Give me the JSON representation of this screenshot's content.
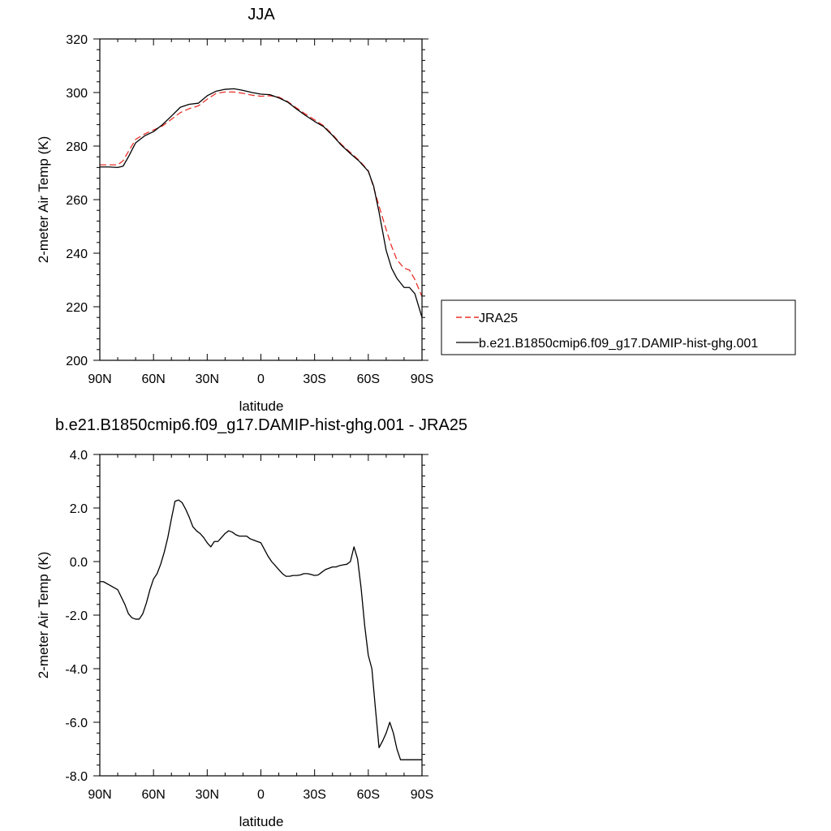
{
  "chart_data": [
    {
      "type": "line",
      "title": "JJA",
      "xlabel": "latitude",
      "ylabel": "2-meter Air Temp (K)",
      "xlim": [
        90,
        -90
      ],
      "ylim": [
        200,
        320
      ],
      "xticks": [
        {
          "value": 90,
          "label": "90N"
        },
        {
          "value": 60,
          "label": "60N"
        },
        {
          "value": 30,
          "label": "30N"
        },
        {
          "value": 0,
          "label": "0"
        },
        {
          "value": -30,
          "label": "30S"
        },
        {
          "value": -60,
          "label": "60S"
        },
        {
          "value": -90,
          "label": "90S"
        }
      ],
      "yticks": [
        {
          "value": 200,
          "label": "200"
        },
        {
          "value": 220,
          "label": "220"
        },
        {
          "value": 240,
          "label": "240"
        },
        {
          "value": 260,
          "label": "260"
        },
        {
          "value": 280,
          "label": "280"
        },
        {
          "value": 300,
          "label": "300"
        },
        {
          "value": 320,
          "label": "320"
        }
      ],
      "grid": false,
      "legend_position": "right",
      "series": [
        {
          "name": "JRA25",
          "color": "#e8302a",
          "dash": "dashed",
          "x": [
            90,
            85,
            80,
            77,
            74,
            70,
            65,
            60,
            55,
            50,
            45,
            40,
            35,
            30,
            25,
            20,
            15,
            10,
            5,
            0,
            -5,
            -10,
            -15,
            -20,
            -25,
            -30,
            -35,
            -40,
            -45,
            -50,
            -55,
            -60,
            -63,
            -66,
            -70,
            -73,
            -76,
            -80,
            -83,
            -86,
            -90
          ],
          "y": [
            273,
            273,
            273,
            274.5,
            278,
            282.5,
            284.5,
            286,
            287.5,
            290,
            292.5,
            294,
            295,
            297.5,
            299.7,
            300.2,
            300.2,
            299.7,
            299,
            298.6,
            298.8,
            298.3,
            296.6,
            294.2,
            291.9,
            289.8,
            287.6,
            284.3,
            280.6,
            277.6,
            274.6,
            270.8,
            264.5,
            257.6,
            248.8,
            242.6,
            237.5,
            234.4,
            233.7,
            230.2,
            223.8
          ]
        },
        {
          "name": "b.e21.B1850cmip6.f09_g17.DAMIP-hist-ghg.001",
          "color": "#000000",
          "dash": "solid",
          "x": [
            90,
            85,
            80,
            77,
            74,
            70,
            65,
            60,
            55,
            50,
            45,
            40,
            35,
            30,
            25,
            20,
            15,
            10,
            5,
            0,
            -5,
            -10,
            -15,
            -20,
            -25,
            -30,
            -35,
            -40,
            -45,
            -50,
            -55,
            -60,
            -63,
            -66,
            -70,
            -73,
            -76,
            -80,
            -83,
            -86,
            -90
          ],
          "y": [
            272.2,
            272.2,
            272,
            272.5,
            276,
            281.2,
            283.8,
            285.4,
            288,
            291.2,
            294.5,
            295.6,
            296,
            298.8,
            300.5,
            301.2,
            301.4,
            300.8,
            300,
            299.4,
            299.2,
            298,
            296.4,
            293.8,
            291.4,
            289.2,
            287.3,
            284,
            280.3,
            277.2,
            274.3,
            270.6,
            265,
            255.3,
            241,
            234.4,
            230.6,
            227.2,
            227.2,
            224.9,
            216
          ]
        }
      ]
    },
    {
      "type": "line",
      "title": "b.e21.B1850cmip6.f09_g17.DAMIP-hist-ghg.001 - JRA25",
      "xlabel": "latitude",
      "ylabel": "2-meter Air Temp (K)",
      "xlim": [
        90,
        -90
      ],
      "ylim": [
        -8,
        4
      ],
      "xticks": [
        {
          "value": 90,
          "label": "90N"
        },
        {
          "value": 60,
          "label": "60N"
        },
        {
          "value": 30,
          "label": "30N"
        },
        {
          "value": 0,
          "label": "0"
        },
        {
          "value": -30,
          "label": "30S"
        },
        {
          "value": -60,
          "label": "60S"
        },
        {
          "value": -90,
          "label": "90S"
        }
      ],
      "yticks": [
        {
          "value": 4,
          "label": "4.0"
        },
        {
          "value": 2,
          "label": "2.0"
        },
        {
          "value": 0,
          "label": "0.0"
        },
        {
          "value": -2,
          "label": "-2.0"
        },
        {
          "value": -4,
          "label": "-4.0"
        },
        {
          "value": -6,
          "label": "-6.0"
        },
        {
          "value": -8,
          "label": "-8.0"
        }
      ],
      "grid": false,
      "series": [
        {
          "color": "#000000",
          "dash": "solid",
          "x": [
            90,
            88,
            84,
            80,
            76,
            74,
            72,
            70,
            68,
            66,
            64,
            62,
            60,
            58,
            56,
            54,
            52,
            50,
            48,
            46,
            44,
            42,
            40,
            38,
            36,
            34,
            32,
            30,
            28,
            26,
            24,
            22,
            20,
            18,
            16,
            14,
            12,
            10,
            8,
            6,
            4,
            2,
            0,
            -2,
            -4,
            -6,
            -8,
            -10,
            -12,
            -14,
            -16,
            -18,
            -20,
            -22,
            -24,
            -26,
            -28,
            -30,
            -32,
            -34,
            -36,
            -38,
            -40,
            -42,
            -44,
            -46,
            -48,
            -50,
            -52,
            -54,
            -56,
            -58,
            -60,
            -62,
            -64,
            -66,
            -68,
            -70,
            -72,
            -74,
            -76,
            -78,
            -80,
            -82,
            -84,
            -86,
            -88,
            -90
          ],
          "y": [
            -0.75,
            -0.75,
            -0.9,
            -1.05,
            -1.6,
            -1.95,
            -2.1,
            -2.15,
            -2.15,
            -1.95,
            -1.55,
            -1.05,
            -0.65,
            -0.45,
            -0.1,
            0.35,
            0.9,
            1.6,
            2.25,
            2.3,
            2.2,
            1.95,
            1.65,
            1.3,
            1.15,
            1.05,
            0.9,
            0.7,
            0.55,
            0.75,
            0.75,
            0.9,
            1.05,
            1.15,
            1.1,
            1.0,
            0.95,
            0.95,
            0.95,
            0.85,
            0.8,
            0.75,
            0.7,
            0.45,
            0.2,
            0.0,
            -0.15,
            -0.3,
            -0.45,
            -0.55,
            -0.55,
            -0.52,
            -0.52,
            -0.5,
            -0.45,
            -0.45,
            -0.48,
            -0.52,
            -0.5,
            -0.4,
            -0.3,
            -0.25,
            -0.2,
            -0.2,
            -0.15,
            -0.12,
            -0.1,
            0.0,
            0.55,
            0.1,
            -1.0,
            -2.4,
            -3.5,
            -4.0,
            -5.5,
            -6.95,
            -6.7,
            -6.4,
            -6.0,
            -6.4,
            -7.0,
            -7.4,
            -7.4,
            -7.4,
            -7.4,
            -7.4,
            -7.4,
            -7.4
          ]
        }
      ]
    }
  ]
}
